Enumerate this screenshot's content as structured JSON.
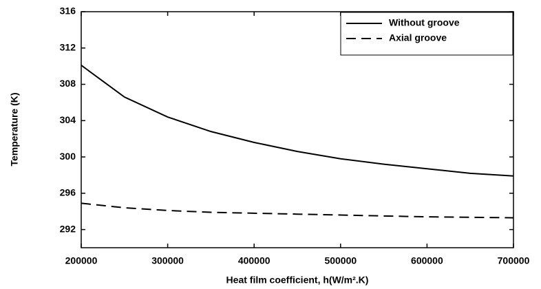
{
  "chart_data": {
    "type": "line",
    "xlabel": "Heat film coefficient, h(W/m².K)",
    "ylabel": "Temperature (K)",
    "x": [
      200000,
      250000,
      300000,
      350000,
      400000,
      450000,
      500000,
      550000,
      600000,
      650000,
      700000
    ],
    "series": [
      {
        "name": "Without groove",
        "color": "#000000",
        "linestyle": "solid",
        "values": [
          310.1,
          306.6,
          304.4,
          302.8,
          301.6,
          300.6,
          299.8,
          299.2,
          298.7,
          298.2,
          297.9
        ]
      },
      {
        "name": "Axial groove",
        "color": "#000000",
        "linestyle": "dashed",
        "values": [
          294.9,
          294.4,
          294.1,
          293.9,
          293.8,
          293.7,
          293.6,
          293.5,
          293.4,
          293.35,
          293.3
        ]
      }
    ],
    "xlim": [
      200000,
      700000
    ],
    "xticks": [
      200000,
      300000,
      400000,
      500000,
      600000,
      700000
    ],
    "ylim": [
      290,
      316
    ],
    "yticks": [
      292,
      296,
      300,
      304,
      308,
      312,
      316
    ],
    "legend": "top-right"
  }
}
